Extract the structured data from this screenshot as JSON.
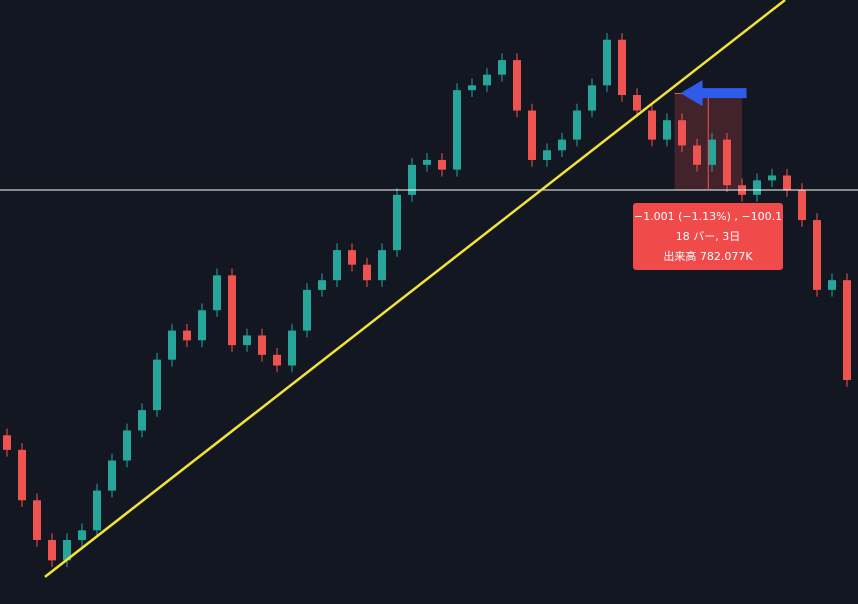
{
  "chart_data": {
    "type": "candlestick",
    "open": [
      85.05,
      84.9,
      84.38,
      83.97,
      83.76,
      83.97,
      84.07,
      84.48,
      84.79,
      85.1,
      85.31,
      85.83,
      86.13,
      86.03,
      86.34,
      86.7,
      85.98,
      86.08,
      85.88,
      85.77,
      86.13,
      86.55,
      86.65,
      86.96,
      86.81,
      86.65,
      86.96,
      87.53,
      87.84,
      87.89,
      87.79,
      88.61,
      88.66,
      88.77,
      88.92,
      88.4,
      87.89,
      87.99,
      88.1,
      88.4,
      88.66,
      89.13,
      88.56,
      88.4,
      88.1,
      88.3,
      88.04,
      87.84,
      88.1,
      87.63,
      87.53,
      87.68,
      87.73,
      87.58,
      87.27,
      86.55,
      86.65
    ],
    "high": [
      85.12,
      84.97,
      84.45,
      84.04,
      84.04,
      84.14,
      84.55,
      84.86,
      85.17,
      85.38,
      85.9,
      86.2,
      86.2,
      86.41,
      86.77,
      86.77,
      86.15,
      86.15,
      85.95,
      86.2,
      86.62,
      86.72,
      87.03,
      87.03,
      86.88,
      87.03,
      87.6,
      87.91,
      87.96,
      87.96,
      88.68,
      88.73,
      88.84,
      88.99,
      88.99,
      88.47,
      88.06,
      88.17,
      88.47,
      88.73,
      89.2,
      89.2,
      88.63,
      88.47,
      88.37,
      88.37,
      88.11,
      88.17,
      88.17,
      87.7,
      87.75,
      87.8,
      87.8,
      87.65,
      87.34,
      86.72,
      86.72
    ],
    "low": [
      84.83,
      84.31,
      83.9,
      83.69,
      83.69,
      83.9,
      84.0,
      84.41,
      84.72,
      85.03,
      85.24,
      85.76,
      85.96,
      85.96,
      86.27,
      85.91,
      85.91,
      85.81,
      85.7,
      85.7,
      86.06,
      86.48,
      86.58,
      86.74,
      86.58,
      86.58,
      86.89,
      87.46,
      87.77,
      87.72,
      87.72,
      88.54,
      88.59,
      88.7,
      88.33,
      87.82,
      87.82,
      87.92,
      88.03,
      88.33,
      88.59,
      88.49,
      88.33,
      88.03,
      88.03,
      87.97,
      87.77,
      87.77,
      87.56,
      87.46,
      87.46,
      87.61,
      87.51,
      87.2,
      86.48,
      86.48,
      85.55
    ],
    "close": [
      84.9,
      84.38,
      83.97,
      83.76,
      83.97,
      84.07,
      84.48,
      84.79,
      85.1,
      85.31,
      85.83,
      86.13,
      86.03,
      86.34,
      86.7,
      85.98,
      86.08,
      85.88,
      85.77,
      86.13,
      86.55,
      86.65,
      86.96,
      86.81,
      86.65,
      86.96,
      87.53,
      87.84,
      87.89,
      87.79,
      88.61,
      88.66,
      88.77,
      88.92,
      88.4,
      87.89,
      87.99,
      88.1,
      88.4,
      88.66,
      89.13,
      88.56,
      88.4,
      88.1,
      88.3,
      88.04,
      87.84,
      88.1,
      87.63,
      87.53,
      87.68,
      87.73,
      87.58,
      87.27,
      86.55,
      86.65,
      85.62
    ],
    "up_color": "#26a69a",
    "down_color": "#ef5350",
    "ylim": [
      83.31,
      89.54
    ],
    "hline": {
      "value": 87.58,
      "color": "#ffffff"
    },
    "trendline": {
      "x": [
        2.53,
        51.87
      ],
      "y": [
        83.59,
        89.54
      ],
      "color": "#f2e33a"
    },
    "measure": {
      "x": [
        44.5,
        49
      ],
      "y": [
        88.58,
        87.58
      ],
      "color": "#ef5350",
      "lines": [
        "−1.001 (−1.13%) , −100.1",
        "18 バー, 3日",
        "出来高 782.077K"
      ]
    }
  }
}
